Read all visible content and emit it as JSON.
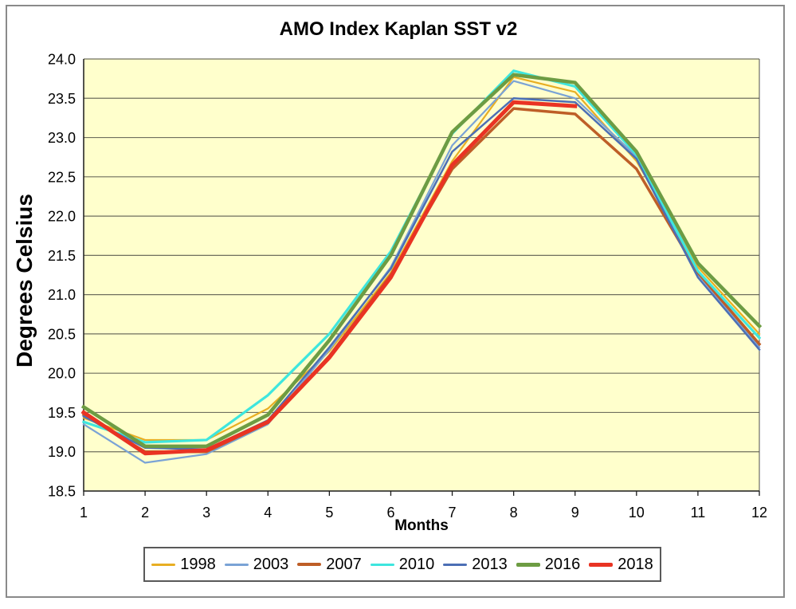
{
  "chart_data": {
    "type": "line",
    "title": "AMO Index Kaplan SST v2",
    "xlabel": "Months",
    "ylabel": "Degrees Celsius",
    "xlim": [
      1,
      12
    ],
    "ylim": [
      18.5,
      24.0
    ],
    "xticks": [
      "1",
      "2",
      "3",
      "4",
      "5",
      "6",
      "7",
      "8",
      "9",
      "10",
      "11",
      "12"
    ],
    "yticks": [
      "18.5",
      "19.0",
      "19.5",
      "20.0",
      "20.5",
      "21.0",
      "21.5",
      "22.0",
      "22.5",
      "23.0",
      "23.5",
      "24.0"
    ],
    "plot_bg": "#FFFFCC",
    "grid_color": "#6F6F5E",
    "axis_color": "#1A1A1A",
    "legend_position": "bottom",
    "grid": "horizontal-only",
    "x": [
      1,
      2,
      3,
      4,
      5,
      6,
      7,
      8,
      9,
      10,
      11,
      12
    ],
    "series": [
      {
        "name": "1998",
        "color": "#E8AE23",
        "width": 2.2,
        "values": [
          19.43,
          19.15,
          19.15,
          19.55,
          20.28,
          21.28,
          22.7,
          23.77,
          23.58,
          22.7,
          21.35,
          20.5
        ]
      },
      {
        "name": "2003",
        "color": "#7AA3D6",
        "width": 2.2,
        "values": [
          19.35,
          18.86,
          18.97,
          19.35,
          20.3,
          21.35,
          22.9,
          23.72,
          23.5,
          22.76,
          21.26,
          20.33
        ]
      },
      {
        "name": "2007",
        "color": "#BE5E27",
        "width": 3.5,
        "values": [
          19.47,
          19.0,
          19.0,
          19.37,
          20.22,
          21.25,
          22.6,
          23.37,
          23.3,
          22.6,
          21.28,
          20.37
        ]
      },
      {
        "name": "2010",
        "color": "#3EE6DE",
        "width": 3.2,
        "values": [
          19.38,
          19.12,
          19.15,
          19.72,
          20.5,
          21.55,
          23.05,
          23.85,
          23.65,
          22.78,
          21.3,
          20.45
        ]
      },
      {
        "name": "2013",
        "color": "#4C6FB5",
        "width": 2.5,
        "values": [
          19.45,
          19.05,
          19.03,
          19.4,
          20.33,
          21.33,
          22.82,
          23.5,
          23.45,
          22.73,
          21.22,
          20.3
        ]
      },
      {
        "name": "2016",
        "color": "#6D9C43",
        "width": 4.5,
        "values": [
          19.57,
          19.07,
          19.07,
          19.47,
          20.42,
          21.5,
          23.07,
          23.8,
          23.7,
          22.82,
          21.4,
          20.6
        ]
      },
      {
        "name": "2018",
        "color": "#E93323",
        "width": 5,
        "values": [
          19.5,
          18.98,
          19.02,
          19.38,
          20.2,
          21.22,
          22.65,
          23.45,
          23.4,
          null,
          null,
          null
        ]
      }
    ]
  }
}
